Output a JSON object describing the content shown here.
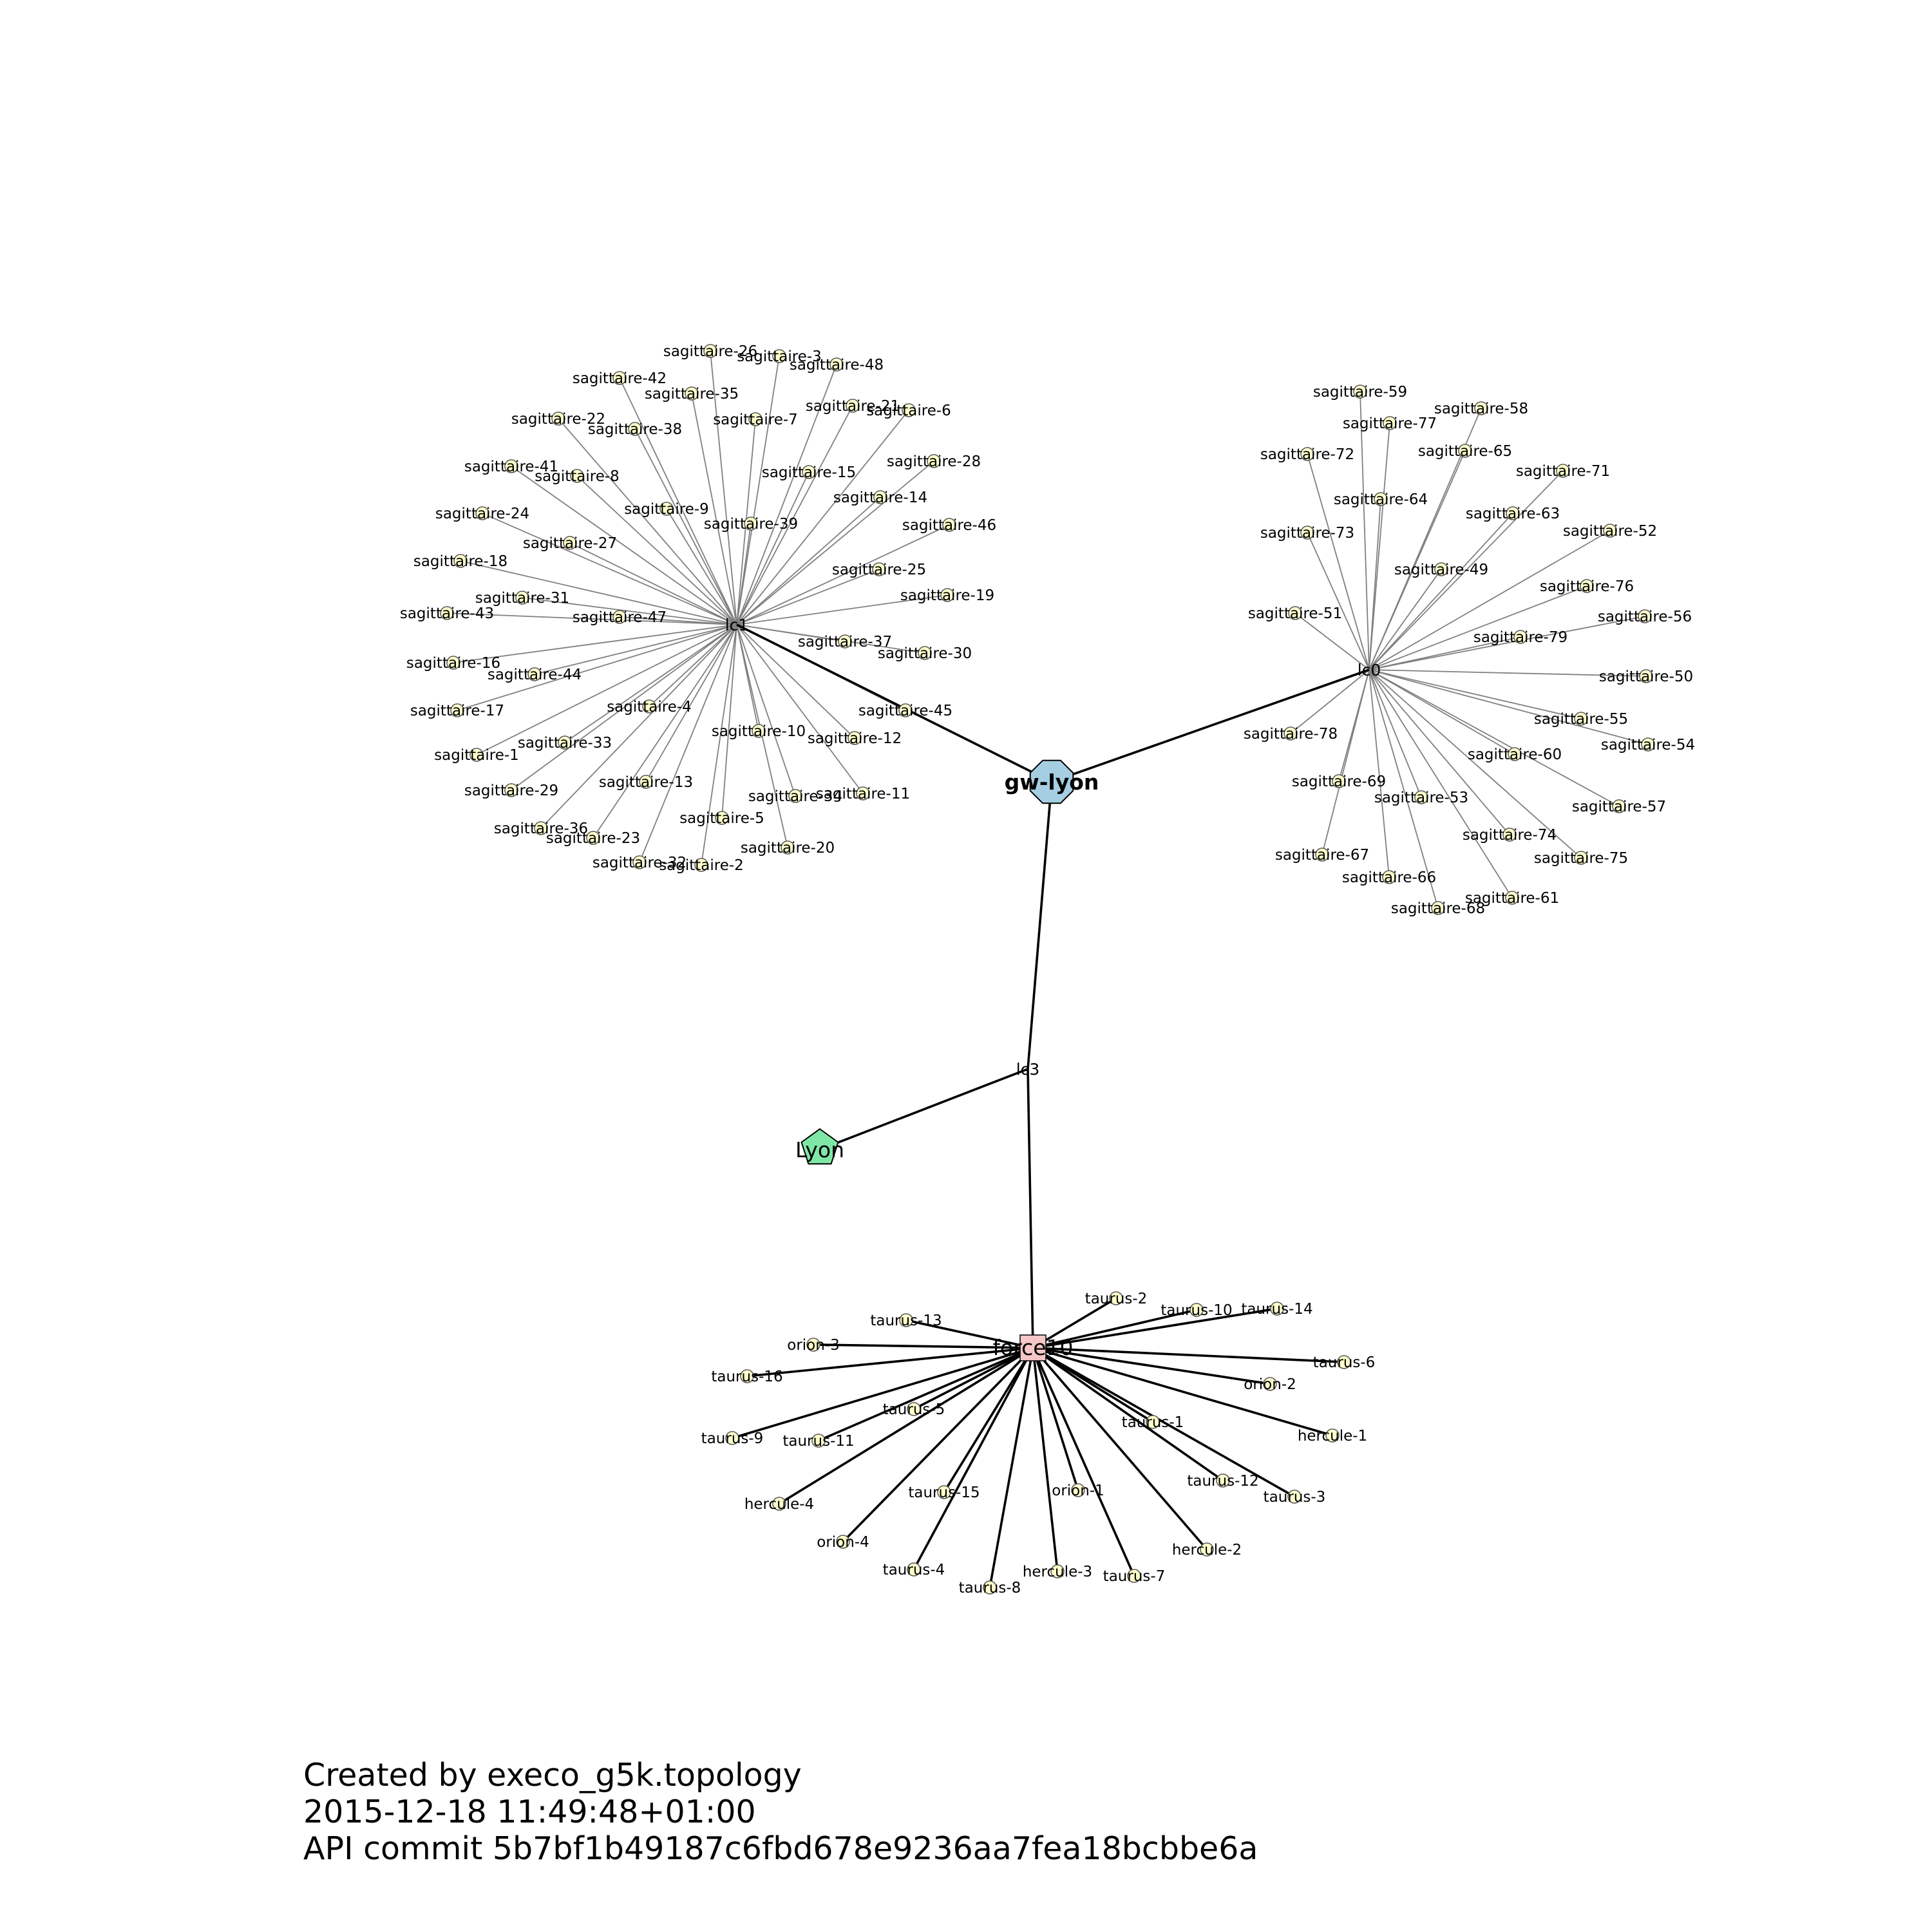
{
  "colors": {
    "node_fill": "#ffffcc",
    "gateway_fill": "#a6cee3",
    "site_fill": "#7fe7a6",
    "router_fill": "#f7c6c7",
    "thin_edge": "#808080",
    "thick_edge": "#000000"
  },
  "graph": {
    "gateway": {
      "id": "gw-lyon",
      "label": "gw-lyon",
      "shape": "octagon"
    },
    "site": {
      "id": "Lyon",
      "label": "Lyon",
      "shape": "pentagon"
    },
    "switches": [
      {
        "id": "lc1",
        "label": "lc1"
      },
      {
        "id": "lc0",
        "label": "lc0"
      },
      {
        "id": "lc3",
        "label": "lc3"
      }
    ],
    "router": {
      "id": "force10",
      "label": "force10",
      "shape": "square"
    },
    "backbone_edges": [
      [
        "gw-lyon",
        "lc1"
      ],
      [
        "gw-lyon",
        "lc0"
      ],
      [
        "gw-lyon",
        "lc3"
      ],
      [
        "lc3",
        "Lyon"
      ],
      [
        "lc3",
        "force10"
      ]
    ],
    "clusters": [
      {
        "parent": "lc1",
        "edge": "thin",
        "nodes": [
          "sagittaire-26",
          "sagittaire-3",
          "sagittaire-48",
          "sagittaire-42",
          "sagittaire-35",
          "sagittaire-21",
          "sagittaire-6",
          "sagittaire-22",
          "sagittaire-38",
          "sagittaire-7",
          "sagittaire-28",
          "sagittaire-41",
          "sagittaire-8",
          "sagittaire-15",
          "sagittaire-14",
          "sagittaire-24",
          "sagittaire-9",
          "sagittaire-39",
          "sagittaire-46",
          "sagittaire-18",
          "sagittaire-27",
          "sagittaire-25",
          "sagittaire-31",
          "sagittaire-19",
          "sagittaire-43",
          "sagittaire-47",
          "sagittaire-37",
          "sagittaire-30",
          "sagittaire-16",
          "sagittaire-44",
          "sagittaire-17",
          "sagittaire-4",
          "sagittaire-45",
          "sagittaire-1",
          "sagittaire-33",
          "sagittaire-10",
          "sagittaire-12",
          "sagittaire-29",
          "sagittaire-13",
          "sagittaire-34",
          "sagittaire-11",
          "sagittaire-36",
          "sagittaire-23",
          "sagittaire-5",
          "sagittaire-20",
          "sagittaire-32",
          "sagittaire-2"
        ]
      },
      {
        "parent": "lc0",
        "edge": "thin",
        "nodes": [
          "sagittaire-59",
          "sagittaire-58",
          "sagittaire-77",
          "sagittaire-65",
          "sagittaire-72",
          "sagittaire-71",
          "sagittaire-64",
          "sagittaire-63",
          "sagittaire-73",
          "sagittaire-52",
          "sagittaire-49",
          "sagittaire-76",
          "sagittaire-51",
          "sagittaire-56",
          "sagittaire-79",
          "sagittaire-50",
          "sagittaire-55",
          "sagittaire-78",
          "sagittaire-54",
          "sagittaire-60",
          "sagittaire-69",
          "sagittaire-53",
          "sagittaire-57",
          "sagittaire-74",
          "sagittaire-67",
          "sagittaire-75",
          "sagittaire-66",
          "sagittaire-61",
          "sagittaire-68"
        ]
      },
      {
        "parent": "force10",
        "edge": "thick",
        "nodes": [
          "taurus-2",
          "taurus-10",
          "taurus-14",
          "taurus-13",
          "orion-3",
          "taurus-6",
          "taurus-16",
          "orion-2",
          "taurus-5",
          "taurus-1",
          "hercule-1",
          "taurus-9",
          "taurus-11",
          "taurus-12",
          "taurus-3",
          "hercule-4",
          "taurus-15",
          "orion-1",
          "orion-4",
          "hercule-2",
          "taurus-4",
          "hercule-3",
          "taurus-7",
          "taurus-8"
        ]
      }
    ]
  },
  "footer": {
    "line1": "Created by execo_g5k.topology",
    "line2": "2015-12-18 11:49:48+01:00",
    "line3": "API commit 5b7bf1b49187c6fbd678e9236aa7fea18bcbbe6a"
  }
}
